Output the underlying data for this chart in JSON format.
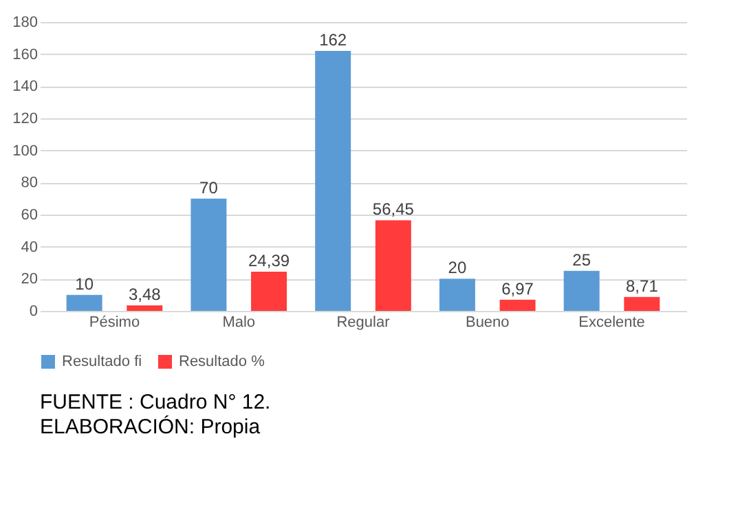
{
  "chart_data": {
    "type": "bar",
    "categories": [
      "Pésimo",
      "Malo",
      "Regular",
      "Bueno",
      "Excelente"
    ],
    "series": [
      {
        "name": "Resultado fi",
        "color": "#5b9bd5",
        "values": [
          10,
          70,
          162,
          20,
          25
        ],
        "value_labels": [
          "10",
          "70",
          "162",
          "20",
          "25"
        ]
      },
      {
        "name": "Resultado %",
        "color": "#ff3b3b",
        "values": [
          3.48,
          24.39,
          56.45,
          6.97,
          8.71
        ],
        "value_labels": [
          "3,48",
          "24,39",
          "56,45",
          "6,97",
          "8,71"
        ]
      }
    ],
    "ylim": [
      0,
      180
    ],
    "yticks": [
      0,
      20,
      40,
      60,
      80,
      100,
      120,
      140,
      160,
      180
    ],
    "grid": "y",
    "legend": "bottom",
    "annotations": [
      "FUENTE          : Cuadro N° 12.",
      "ELABORACIÓN: Propia"
    ]
  }
}
